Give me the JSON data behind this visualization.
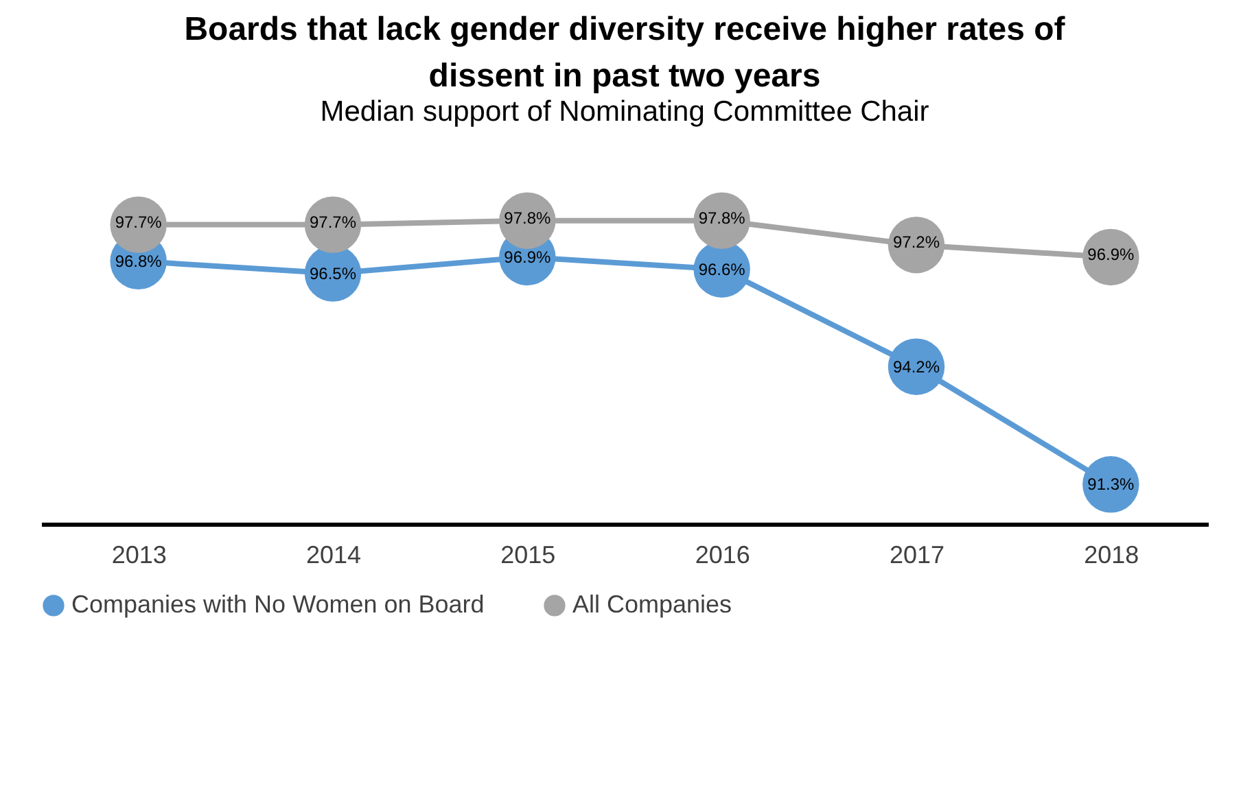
{
  "chart_data": {
    "type": "line",
    "title": "Boards that lack gender diversity receive higher rates of dissent in past two years",
    "subtitle": "Median support of Nominating Committee Chair",
    "categories": [
      "2013",
      "2014",
      "2015",
      "2016",
      "2017",
      "2018"
    ],
    "series": [
      {
        "name": "Companies with No Women on Board",
        "color": "#5b9bd5",
        "values": [
          96.8,
          96.5,
          96.9,
          96.6,
          94.2,
          91.3
        ],
        "value_labels": [
          "96.8%",
          "96.5%",
          "96.9%",
          "96.6%",
          "94.2%",
          "91.3%"
        ]
      },
      {
        "name": "All Companies",
        "color": "#a5a5a5",
        "values": [
          97.7,
          97.7,
          97.8,
          97.8,
          97.2,
          96.9
        ],
        "value_labels": [
          "97.7%",
          "97.7%",
          "97.8%",
          "97.8%",
          "97.2%",
          "96.9%"
        ]
      }
    ],
    "marker": "circle",
    "legend": "bottom"
  }
}
